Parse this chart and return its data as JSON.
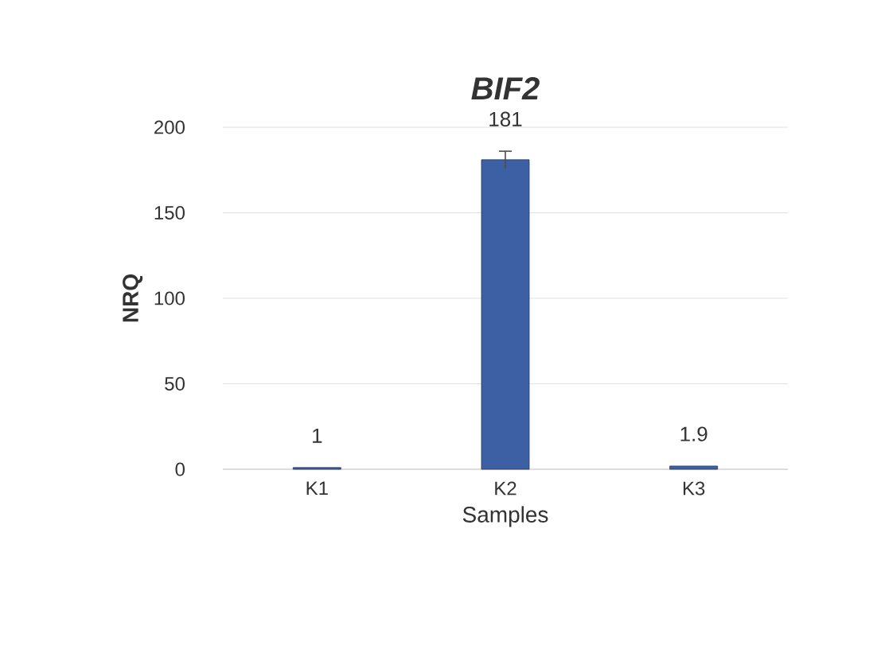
{
  "chart_data": {
    "type": "bar",
    "title": "BIF2",
    "xlabel": "Samples",
    "ylabel": "NRQ",
    "categories": [
      "K1",
      "K2",
      "K3"
    ],
    "values": [
      1,
      181,
      1.9
    ],
    "value_labels": [
      "1",
      "181",
      "1.9"
    ],
    "errors": [
      null,
      5,
      null
    ],
    "color": "#3d5fa3",
    "ylim": [
      0,
      200
    ],
    "yticks": [
      0,
      50,
      100,
      150,
      200
    ],
    "grid": "y"
  }
}
